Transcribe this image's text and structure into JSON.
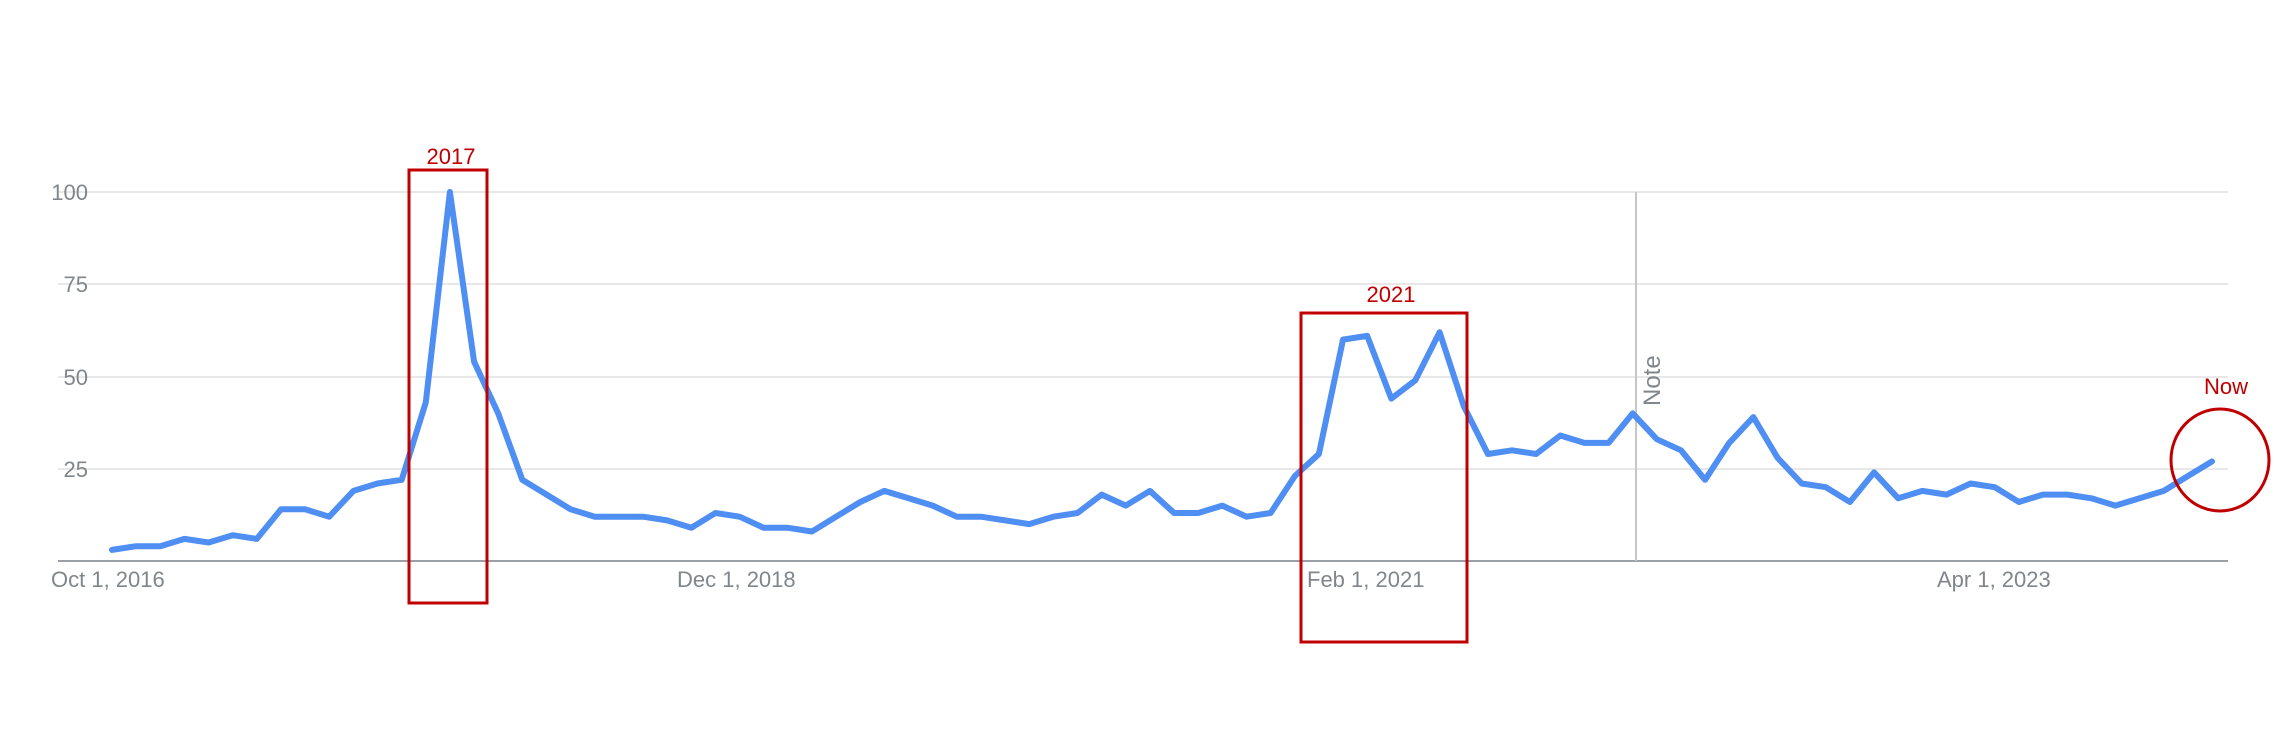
{
  "colors": {
    "series": "#4f8ef2",
    "annotation": "#c00000",
    "grid": "#e0e0e0",
    "tick_text": "#80868b"
  },
  "chart_data": {
    "type": "line",
    "title": "",
    "xlabel": "",
    "ylabel": "",
    "ylim": [
      0,
      100
    ],
    "y_ticks": [
      "100",
      "75",
      "50",
      "25"
    ],
    "x_ticks": [
      "Oct 1, 2016",
      "Dec 1, 2018",
      "Feb 1, 2021",
      "Apr 1, 2023"
    ],
    "grid": true,
    "legend": "none",
    "series": [
      {
        "values": [
          3,
          4,
          4,
          6,
          5,
          7,
          6,
          14,
          14,
          12,
          19,
          21,
          22,
          43,
          100,
          54,
          40,
          22,
          18,
          14,
          12,
          12,
          12,
          11,
          9,
          13,
          12,
          9,
          9,
          8,
          12,
          16,
          19,
          17,
          15,
          12,
          12,
          11,
          10,
          12,
          13,
          18,
          15,
          19,
          13,
          13,
          15,
          12,
          13,
          23,
          29,
          60,
          61,
          44,
          49,
          62,
          42,
          29,
          30,
          29,
          34,
          32,
          32,
          40,
          33,
          30,
          22,
          32,
          39,
          28,
          21,
          20,
          16,
          24,
          17,
          19,
          18,
          21,
          20,
          16,
          18,
          18,
          17,
          15,
          17,
          19,
          23,
          27
        ]
      }
    ],
    "vertical_marker": {
      "label": "Note"
    },
    "annotations": [
      {
        "shape": "rect",
        "label": "2017"
      },
      {
        "shape": "rect",
        "label": "2021"
      },
      {
        "shape": "circle",
        "label": "Now"
      }
    ]
  }
}
